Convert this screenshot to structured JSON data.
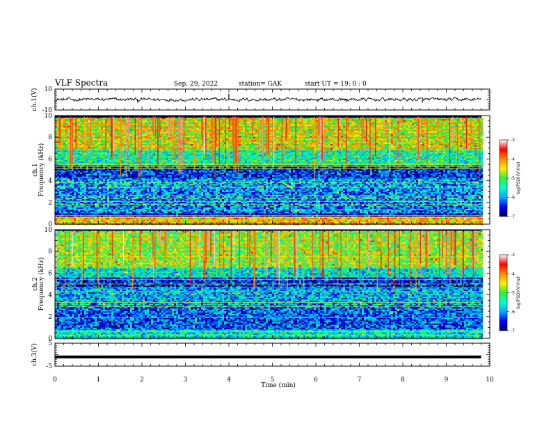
{
  "header": {
    "title": "VLF Spectra",
    "date": "Sep. 29, 2022",
    "station": "station= GAK",
    "start": "start UT =  19: 0  : 0"
  },
  "chart_data": [
    {
      "type": "line",
      "ylabel": "ch.1(V)",
      "ylim": [
        -10,
        10
      ],
      "yticks": [
        "10",
        "-10"
      ],
      "xlim": [
        0,
        10
      ],
      "x_end": 9.8,
      "baseline": 0,
      "noise_amplitude": 1.2,
      "spikes": [
        {
          "x": 1.9,
          "value": -3.0
        },
        {
          "x": 4.0,
          "value": 5.5
        },
        {
          "x": 6.7,
          "value": -2.0
        },
        {
          "x": 8.45,
          "value": -3.0
        }
      ],
      "colors": {
        "line": "#000000"
      }
    },
    {
      "type": "heatmap",
      "channel_label": "ch.1",
      "ylabel": "Frequency (kHz)",
      "ylim": [
        0,
        10
      ],
      "yticks": [
        "0",
        "2",
        "4",
        "6",
        "8",
        "10"
      ],
      "xlim": [
        0,
        10
      ],
      "data_end_min": 9.8,
      "scale": "log",
      "zlim": [
        -7,
        -3
      ],
      "colorbar": {
        "label": "log(PSD)(V²/Hz)",
        "ticks": [
          "-3",
          "-4",
          "-5",
          "-6",
          "-7"
        ],
        "stops": [
          "#000060",
          "#0000ff",
          "#00aaff",
          "#00ffcc",
          "#33ee33",
          "#ffee00",
          "#ff8800",
          "#ff0000",
          "#ffffff"
        ]
      },
      "bands": [
        {
          "f_from": 9.8,
          "f_to": 6.8,
          "level": -4.6
        },
        {
          "f_from": 6.8,
          "f_to": 5.4,
          "level": -5.4
        },
        {
          "f_from": 5.4,
          "f_to": 4.2,
          "level": -6.4
        },
        {
          "f_from": 4.2,
          "f_to": 3.2,
          "level": -6.0
        },
        {
          "f_from": 3.2,
          "f_to": 1.0,
          "level": -6.1
        },
        {
          "f_from": 1.0,
          "f_to": 0.7,
          "level": -6.7
        },
        {
          "f_from": 0.7,
          "f_to": 0.0,
          "level": -4.3
        }
      ],
      "tone_lines_khz": [
        0.2,
        0.4,
        0.6,
        0.8,
        1.3,
        1.8,
        2.1,
        2.4,
        2.6,
        3.4,
        3.8,
        5.1,
        5.3,
        5.5
      ]
    },
    {
      "type": "heatmap",
      "channel_label": "ch.2",
      "ylabel": "Frequency (kHz)",
      "ylim": [
        0,
        10
      ],
      "yticks": [
        "0",
        "2",
        "4",
        "6",
        "8",
        "10"
      ],
      "xlim": [
        0,
        10
      ],
      "data_end_min": 9.8,
      "scale": "log",
      "zlim": [
        -7,
        -3
      ],
      "colorbar": {
        "label": "log(PSD)(V²/Hz)",
        "ticks": [
          "-3",
          "-4",
          "-5",
          "-6",
          "-7"
        ],
        "stops": [
          "#000060",
          "#0000ff",
          "#00aaff",
          "#00ffcc",
          "#33ee33",
          "#ffee00",
          "#ff8800",
          "#ff0000",
          "#ffffff"
        ]
      },
      "bands": [
        {
          "f_from": 9.9,
          "f_to": 6.5,
          "level": -4.8
        },
        {
          "f_from": 6.5,
          "f_to": 5.6,
          "level": -5.6
        },
        {
          "f_from": 5.6,
          "f_to": 4.6,
          "level": -6.5
        },
        {
          "f_from": 4.6,
          "f_to": 3.0,
          "level": -5.9
        },
        {
          "f_from": 3.0,
          "f_to": 2.0,
          "level": -6.2
        },
        {
          "f_from": 2.0,
          "f_to": 0.8,
          "level": -6.3
        },
        {
          "f_from": 0.8,
          "f_to": 0.0,
          "level": -5.6
        }
      ],
      "tone_lines_khz": [
        0.3,
        0.6,
        1.9,
        2.9,
        3.3,
        4.3,
        4.7,
        5.0,
        5.4,
        7.5
      ]
    },
    {
      "type": "line",
      "ylabel": "ch.3(V)",
      "ylim": [
        -5,
        5
      ],
      "yticks": [
        "5",
        "-5"
      ],
      "xlim": [
        0,
        10
      ],
      "x_end": 9.8,
      "baseline": -1.0,
      "noise_amplitude": 0,
      "spikes": [],
      "xlabel": "Time (min)",
      "xticks": [
        "0",
        "1",
        "2",
        "3",
        "4",
        "5",
        "6",
        "7",
        "8",
        "9",
        "10"
      ],
      "colors": {
        "line": "#000000"
      }
    }
  ]
}
